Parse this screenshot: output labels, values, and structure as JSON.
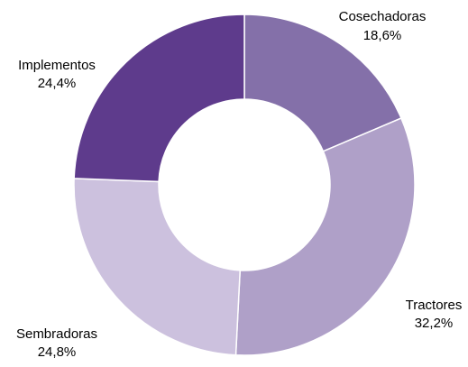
{
  "chart_data": {
    "type": "pie",
    "variant": "donut",
    "start": "12 o'clock, clockwise",
    "legend": "none (labels beside slices)",
    "slices": [
      {
        "label": "Cosechadoras",
        "value": 18.6,
        "value_label": "18,6%",
        "color": "#8470A9"
      },
      {
        "label": "Tractores",
        "value": 32.2,
        "value_label": "32,2%",
        "color": "#AFA0C8"
      },
      {
        "label": "Sembradoras",
        "value": 24.8,
        "value_label": "24,8%",
        "color": "#CCC1DE"
      },
      {
        "label": "Implementos",
        "value": 24.4,
        "value_label": "24,4%",
        "color": "#5E3B8C"
      }
    ]
  }
}
